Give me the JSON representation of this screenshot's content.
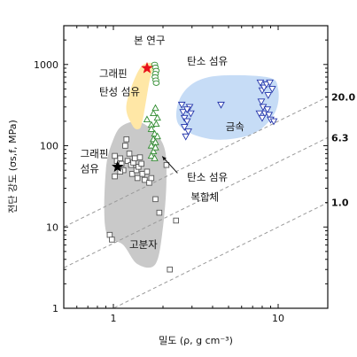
{
  "chart_data": {
    "type": "scatter",
    "xlabel": "밀도 (ρ, g cm⁻³)",
    "ylabel": "전단 강도 (σs,f, MPa)",
    "x_scale": "log",
    "y_scale": "log",
    "xlim": [
      0.5,
      20
    ],
    "ylim": [
      1,
      3000
    ],
    "x_ticks": [
      1,
      10
    ],
    "y_ticks": [
      1,
      10,
      100,
      1000
    ],
    "x_tick_labels": [
      "1",
      "10"
    ],
    "y_tick_labels": [
      "1",
      "10",
      "100",
      "1000"
    ],
    "guide_lines": [
      {
        "label": "20.0",
        "ratio": 20.0
      },
      {
        "label": "6.3",
        "ratio": 6.3
      },
      {
        "label": "1.0",
        "ratio": 1.0
      }
    ],
    "regions": [
      {
        "name": "고분자",
        "color": "#c9c9c9",
        "points": [
          [
            1.15,
            180
          ],
          [
            1.5,
            190
          ],
          [
            2.0,
            105
          ],
          [
            2.1,
            40
          ],
          [
            2.0,
            10
          ],
          [
            1.8,
            3.5
          ],
          [
            1.4,
            3.5
          ],
          [
            1.15,
            6
          ],
          [
            0.9,
            9
          ],
          [
            0.9,
            50
          ],
          [
            1.0,
            120
          ]
        ]
      },
      {
        "name": "탄소 섬유 복합체",
        "color": "#ffe7a6",
        "points": [
          [
            1.3,
            180
          ],
          [
            1.2,
            320
          ],
          [
            1.45,
            900
          ],
          [
            1.75,
            1000
          ],
          [
            1.65,
            600
          ],
          [
            1.5,
            200
          ],
          [
            1.42,
            160
          ]
        ]
      },
      {
        "name": "금속",
        "color": "#c6dcf6",
        "points": [
          [
            2.5,
            180
          ],
          [
            2.6,
            420
          ],
          [
            3.8,
            700
          ],
          [
            8.5,
            700
          ],
          [
            10.0,
            500
          ],
          [
            9.5,
            250
          ],
          [
            7.0,
            140
          ],
          [
            4.0,
            120
          ]
        ]
      }
    ],
    "series": [
      {
        "name": "고분자",
        "marker": "square",
        "color": "#555555",
        "points": [
          [
            1.02,
            75
          ],
          [
            1.05,
            65
          ],
          [
            1.08,
            55
          ],
          [
            1.1,
            70
          ],
          [
            1.12,
            60
          ],
          [
            1.15,
            50
          ],
          [
            1.18,
            100
          ],
          [
            1.2,
            120
          ],
          [
            1.22,
            65
          ],
          [
            1.25,
            80
          ],
          [
            1.28,
            58
          ],
          [
            1.3,
            45
          ],
          [
            1.32,
            62
          ],
          [
            1.35,
            70
          ],
          [
            1.38,
            50
          ],
          [
            1.4,
            40
          ],
          [
            1.42,
            55
          ],
          [
            1.45,
            72
          ],
          [
            1.48,
            60
          ],
          [
            1.5,
            45
          ],
          [
            1.55,
            38
          ],
          [
            1.6,
            48
          ],
          [
            1.65,
            35
          ],
          [
            1.7,
            40
          ],
          [
            1.8,
            22
          ],
          [
            1.9,
            15
          ],
          [
            2.1,
            58
          ],
          [
            2.4,
            12
          ],
          [
            2.2,
            3
          ],
          [
            0.95,
            8
          ],
          [
            0.98,
            7
          ],
          [
            1.02,
            42
          ],
          [
            1.1,
            48
          ]
        ]
      },
      {
        "name": "탄소 섬유 복합체",
        "marker": "triangle-up",
        "color": "#2e8b2e",
        "points": [
          [
            1.6,
            210
          ],
          [
            1.7,
            180
          ],
          [
            1.75,
            250
          ],
          [
            1.8,
            290
          ],
          [
            1.85,
            220
          ],
          [
            1.7,
            160
          ],
          [
            1.78,
            140
          ],
          [
            1.75,
            120
          ],
          [
            1.7,
            100
          ],
          [
            1.8,
            110
          ],
          [
            1.85,
            130
          ],
          [
            1.75,
            85
          ],
          [
            1.8,
            95
          ],
          [
            1.7,
            75
          ],
          [
            1.78,
            70
          ],
          [
            1.82,
            185
          ]
        ]
      },
      {
        "name": "탄소 섬유",
        "marker": "ellipse",
        "color": "#2e8b2e",
        "points": [
          [
            1.78,
            1000
          ],
          [
            1.8,
            920
          ],
          [
            1.82,
            840
          ],
          [
            1.8,
            770
          ],
          [
            1.79,
            700
          ],
          [
            1.81,
            640
          ],
          [
            1.82,
            590
          ]
        ]
      },
      {
        "name": "금속",
        "marker": "triangle-down",
        "color": "#2233aa",
        "points": [
          [
            2.6,
            320
          ],
          [
            2.65,
            260
          ],
          [
            2.7,
            220
          ],
          [
            2.8,
            200
          ],
          [
            2.7,
            170
          ],
          [
            2.85,
            150
          ],
          [
            2.75,
            130
          ],
          [
            2.9,
            300
          ],
          [
            2.95,
            250
          ],
          [
            2.8,
            280
          ],
          [
            4.5,
            320
          ],
          [
            7.8,
            600
          ],
          [
            8.0,
            480
          ],
          [
            8.2,
            520
          ],
          [
            8.5,
            570
          ],
          [
            7.9,
            350
          ],
          [
            8.1,
            300
          ],
          [
            8.3,
            250
          ],
          [
            8.6,
            280
          ],
          [
            8.8,
            240
          ],
          [
            9.0,
            210
          ],
          [
            8.9,
            600
          ],
          [
            9.2,
            500
          ],
          [
            9.4,
            200
          ],
          [
            8.7,
            420
          ],
          [
            7.7,
            250
          ],
          [
            8.0,
            220
          ]
        ]
      },
      {
        "name": "그래핀 섬유",
        "marker": "star",
        "color": "#000000",
        "points": [
          [
            1.06,
            55
          ]
        ]
      },
      {
        "name": "그래핀 탄성 섬유",
        "marker": "star",
        "color": "#e8101a",
        "points": [
          [
            1.6,
            900
          ]
        ]
      }
    ],
    "annotations": [
      {
        "text": "본 연구",
        "x": 1.33,
        "y": 1800
      },
      {
        "text": "그래핀",
        "x": 0.82,
        "y": 700
      },
      {
        "text": "탄성 섬유",
        "x": 0.82,
        "y": 420
      },
      {
        "text": "탄소 섬유",
        "x": 2.8,
        "y": 1000
      },
      {
        "text": "금속",
        "x": 4.8,
        "y": 155
      },
      {
        "text": "그래핀",
        "x": 0.63,
        "y": 72
      },
      {
        "text": "섬유",
        "x": 0.63,
        "y": 47
      },
      {
        "text": "탄소 섬유",
        "x": 2.8,
        "y": 37
      },
      {
        "text": "복합체",
        "x": 2.95,
        "y": 21
      },
      {
        "text": "고분자",
        "x": 1.25,
        "y": 5.5
      }
    ]
  }
}
